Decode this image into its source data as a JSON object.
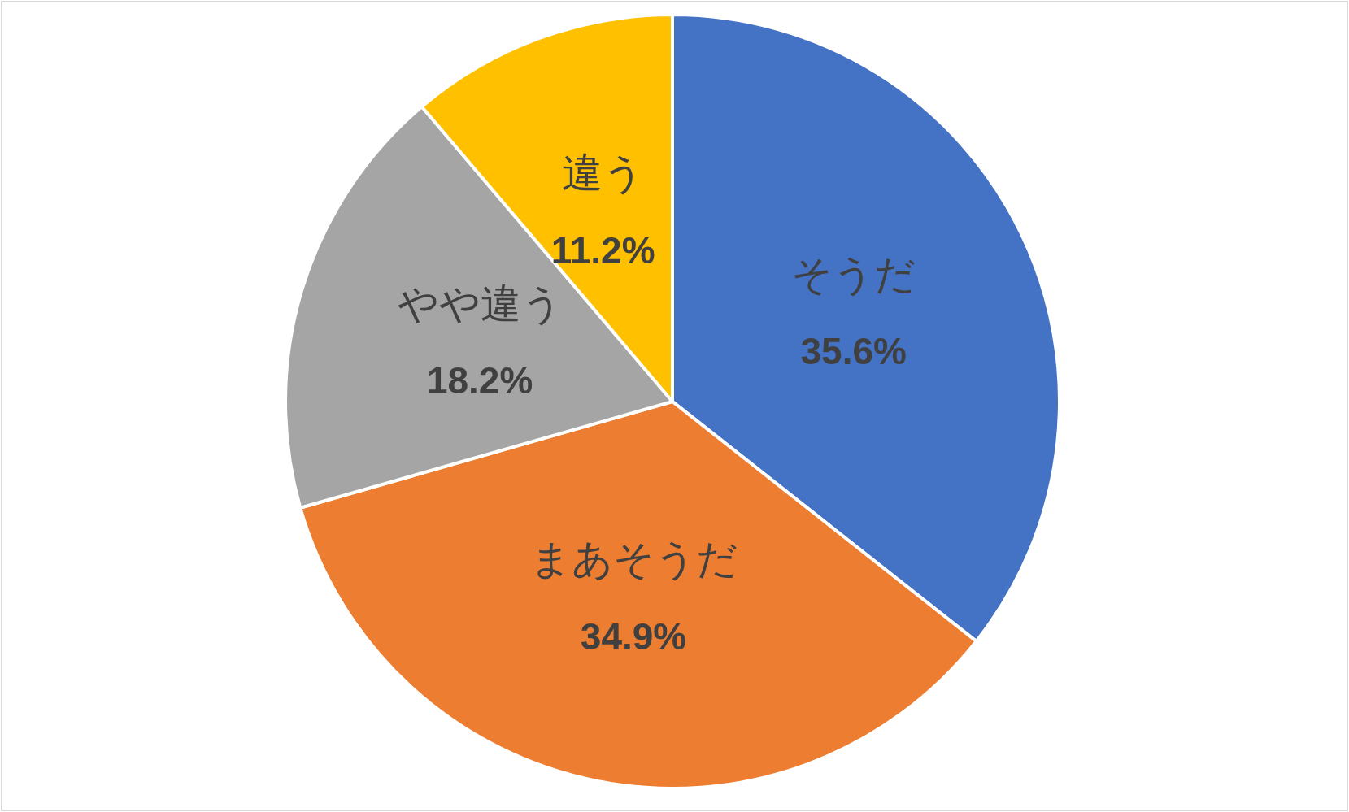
{
  "chart_data": {
    "type": "pie",
    "categories": [
      "そうだ",
      "まあそうだ",
      "やや違う",
      "違う"
    ],
    "values": [
      35.6,
      34.9,
      18.2,
      11.2
    ],
    "colors": [
      "#4472c4",
      "#ed7d31",
      "#a5a5a5",
      "#ffc000"
    ],
    "value_labels": [
      "35.6%",
      "34.9%",
      "18.2%",
      "11.2%"
    ],
    "legend": false
  }
}
